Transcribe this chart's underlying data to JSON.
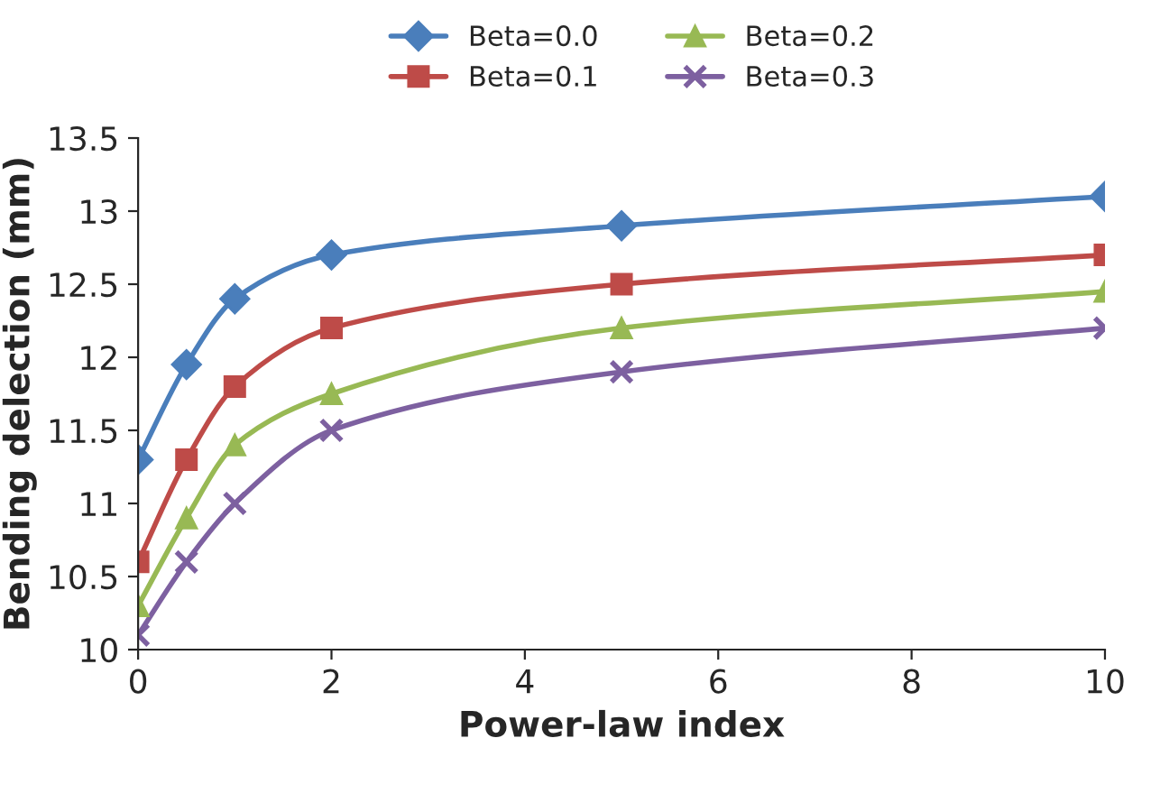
{
  "chart_data": {
    "type": "line",
    "xlabel": "Power-law index",
    "ylabel": "Bending delection (mm)",
    "x": [
      0,
      0.5,
      1,
      2,
      5,
      10
    ],
    "series": [
      {
        "name": "Beta=0.0",
        "color": "#4a7ebb",
        "marker": "diamond",
        "values": [
          11.3,
          11.95,
          12.4,
          12.7,
          12.9,
          13.1
        ]
      },
      {
        "name": "Beta=0.1",
        "color": "#be4b48",
        "marker": "square",
        "values": [
          10.6,
          11.3,
          11.8,
          12.2,
          12.5,
          12.7
        ]
      },
      {
        "name": "Beta=0.2",
        "color": "#98b954",
        "marker": "triangle",
        "values": [
          10.3,
          10.9,
          11.4,
          11.75,
          12.2,
          12.45
        ]
      },
      {
        "name": "Beta=0.3",
        "color": "#7d60a0",
        "marker": "cross",
        "values": [
          10.1,
          10.6,
          11.0,
          11.5,
          11.9,
          12.2
        ]
      }
    ],
    "xlim": [
      0,
      10
    ],
    "xticks": [
      0,
      2,
      4,
      6,
      8,
      10
    ],
    "ylim": [
      10,
      13.5
    ],
    "yticks": [
      10,
      10.5,
      11,
      11.5,
      12,
      12.5,
      13,
      13.5
    ],
    "grid": false,
    "legend": "top",
    "line_style": "solid"
  }
}
